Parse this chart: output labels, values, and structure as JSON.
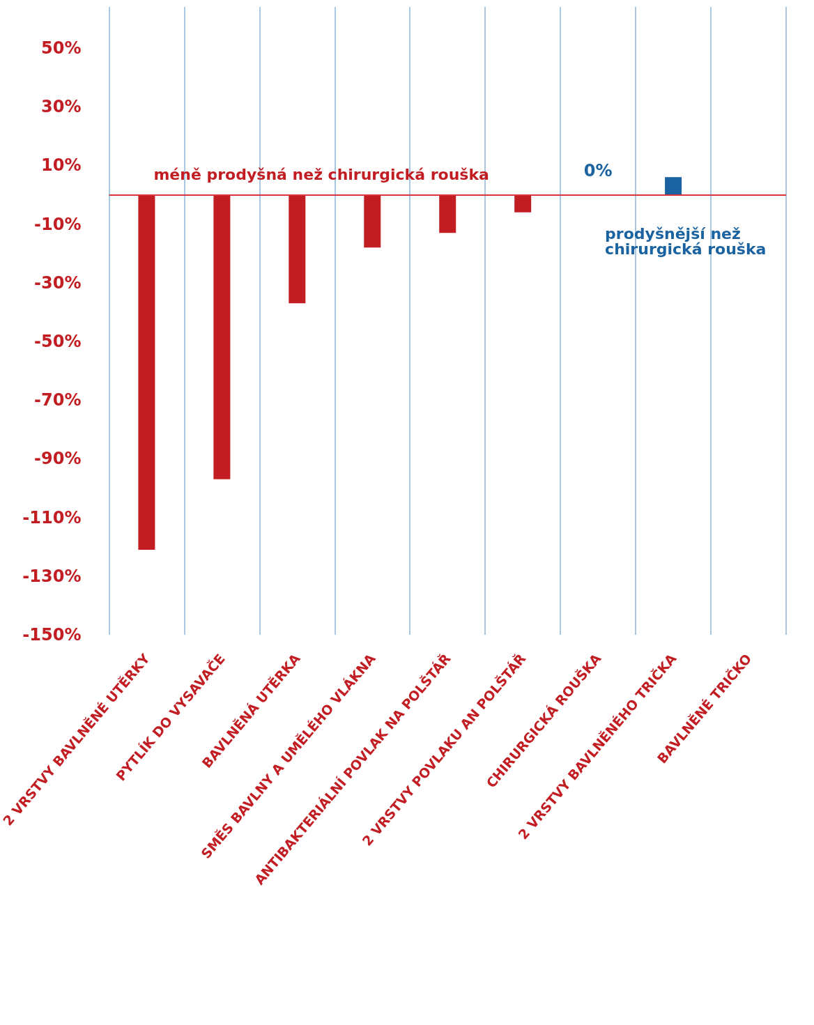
{
  "chart_data": {
    "type": "bar",
    "categories": [
      "2 VRSTVY BAVLNĚNÉ UTĚRKY",
      "PYTLÍK DO VYSAVAČE",
      "BAVLNĚNÁ UTĚRKA",
      "SMĚS BAVLNY A UMĚLÉHO VLÁKNA",
      "ANTIBAKTERIÁLNÍ POVLAK NA POLŠTÁŘ",
      "2 VRSTVY POVLAKU AN POLŠTÁŘ",
      "CHIRURGICKÁ ROUŠKA",
      "2 VRSTVY BAVLNĚNÉHO TRIČKA",
      "BAVLNĚNÉ TRIČKO"
    ],
    "values": [
      -121,
      -97,
      -37,
      -18,
      -13,
      -6,
      0,
      6,
      null
    ],
    "colors": [
      "#c11d22",
      "#c11d22",
      "#c11d22",
      "#c11d22",
      "#c11d22",
      "#c11d22",
      "#1b63a0",
      "#1b63a0",
      "#1b63a0"
    ],
    "value_labels": [
      null,
      null,
      null,
      null,
      null,
      null,
      "0%",
      null,
      null
    ],
    "ylim": [
      -150,
      64
    ],
    "yticks": [
      {
        "value": 50,
        "label": "50%"
      },
      {
        "value": 30,
        "label": "30%"
      },
      {
        "value": 10,
        "label": "10%"
      },
      {
        "value": -10,
        "label": "-10%"
      },
      {
        "value": -30,
        "label": "-30%"
      },
      {
        "value": -50,
        "label": "-50%"
      },
      {
        "value": -70,
        "label": "-70%"
      },
      {
        "value": -90,
        "label": "-90%"
      },
      {
        "value": -110,
        "label": "-110%"
      },
      {
        "value": -130,
        "label": "-130%"
      },
      {
        "value": -150,
        "label": "-150%"
      }
    ],
    "ref_lines": [
      {
        "axis": "y",
        "value": 0,
        "color": "#d9353b"
      }
    ],
    "annotations": [
      "méně prodyšná než chirurgická rouška",
      "prodyšnější než chirurgická rouška"
    ],
    "grid": "x"
  }
}
